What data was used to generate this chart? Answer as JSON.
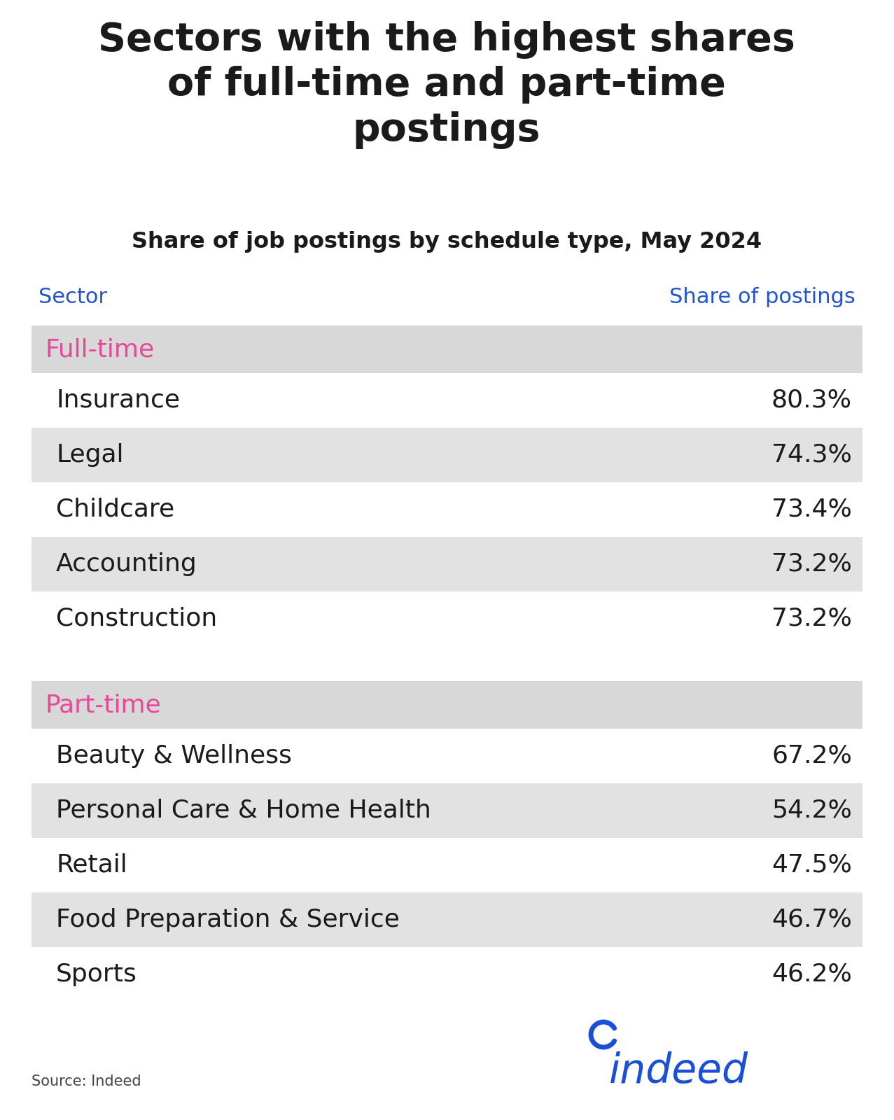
{
  "title": "Sectors with the highest shares\nof full-time and part-time\npostings",
  "subtitle": "Share of job postings by schedule type, May 2024",
  "col_header_left": "Sector",
  "col_header_right": "Share of postings",
  "header_color": "#2255cc",
  "fulltime_label": "Full-time",
  "parttime_label": "Part-time",
  "category_label_color": "#e8489a",
  "fulltime_rows": [
    {
      "sector": "Insurance",
      "value": "80.3%"
    },
    {
      "sector": "Legal",
      "value": "74.3%"
    },
    {
      "sector": "Childcare",
      "value": "73.4%"
    },
    {
      "sector": "Accounting",
      "value": "73.2%"
    },
    {
      "sector": "Construction",
      "value": "73.2%"
    }
  ],
  "parttime_rows": [
    {
      "sector": "Beauty & Wellness",
      "value": "67.2%"
    },
    {
      "sector": "Personal Care & Home Health",
      "value": "54.2%"
    },
    {
      "sector": "Retail",
      "value": "47.5%"
    },
    {
      "sector": "Food Preparation & Service",
      "value": "46.7%"
    },
    {
      "sector": "Sports",
      "value": "46.2%"
    }
  ],
  "row_bg_alt": "#e2e2e2",
  "row_bg_white": "#ffffff",
  "category_bg": "#d8d8d8",
  "source_text": "Source: Indeed",
  "bg_color": "#ffffff",
  "title_fontsize": 40,
  "subtitle_fontsize": 23,
  "header_fontsize": 22,
  "category_fontsize": 26,
  "row_fontsize": 26,
  "source_fontsize": 15,
  "indeed_fontsize": 42
}
